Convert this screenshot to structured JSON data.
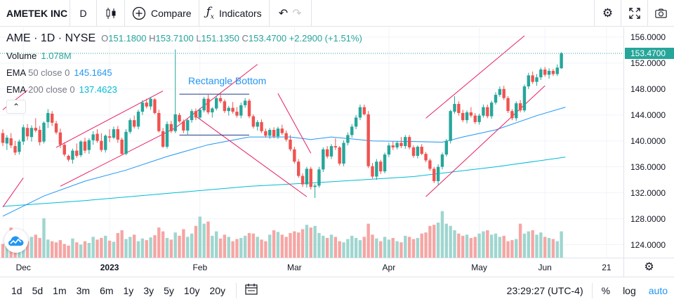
{
  "toolbar": {
    "symbol": "AMETEK INC",
    "interval": "D",
    "compare_label": "Compare",
    "indicators_label": "Indicators",
    "icons": [
      "candles-icon",
      "plus-circle-icon",
      "fx-icon",
      "undo-icon",
      "redo-icon",
      "gear-icon",
      "fullscreen-icon",
      "camera-icon"
    ]
  },
  "legend": {
    "ticker": "AME",
    "interval": "1D",
    "exchange": "NYSE",
    "open_key": "O",
    "open": "151.1800",
    "high_key": "H",
    "high": "153.7100",
    "low_key": "L",
    "low": "151.1350",
    "close_key": "C",
    "close": "153.4700",
    "change": "+2.2900 (+1.51%)",
    "volume_label": "Volume",
    "volume_value": "1.078M",
    "ema50_label": "EMA",
    "ema50_params": "50 close 0",
    "ema50_value": "145.1645",
    "ema200_label": "EMA",
    "ema200_params": "200 close 0",
    "ema200_value": "137.4623",
    "collapse_symbol": "⌃"
  },
  "drawing": {
    "rectangle_label": "Rectangle Bottom"
  },
  "price_scale": {
    "labels": [
      "156.0000",
      "152.0000",
      "148.0000",
      "144.0000",
      "140.0000",
      "136.0000",
      "132.0000",
      "128.0000",
      "124.0000"
    ],
    "last_price": "153.4700"
  },
  "time_axis": {
    "labels": [
      {
        "text": "Dec",
        "bold": false
      },
      {
        "text": "2023",
        "bold": true
      },
      {
        "text": "Feb",
        "bold": false
      },
      {
        "text": "Mar",
        "bold": false
      },
      {
        "text": "Apr",
        "bold": false
      },
      {
        "text": "May",
        "bold": false
      },
      {
        "text": "Jun",
        "bold": false
      },
      {
        "text": "21",
        "bold": false
      }
    ]
  },
  "bottombar": {
    "ranges": [
      "1d",
      "5d",
      "1m",
      "3m",
      "6m",
      "1y",
      "3y",
      "5y",
      "10y",
      "20y"
    ],
    "clock": "23:29:27 (UTC-4)",
    "percent_label": "%",
    "log_label": "log",
    "auto_label": "auto"
  },
  "colors": {
    "up": "#26a69a",
    "down": "#ef5350",
    "ema50": "#2196f3",
    "ema200": "#00bcd4",
    "channel": "#e91e63",
    "accent": "#2196f3"
  },
  "chart_data": {
    "type": "candlestick",
    "ylim": [
      122,
      157.5
    ],
    "candles": [
      [
        141.2,
        141.8,
        139.2,
        139.7
      ],
      [
        139.6,
        140.9,
        138.6,
        140.5
      ],
      [
        140.4,
        141.2,
        138.9,
        139.3
      ],
      [
        139.2,
        140.0,
        137.8,
        138.2
      ],
      [
        138.3,
        140.2,
        137.9,
        139.9
      ],
      [
        139.9,
        142.5,
        139.4,
        142.1
      ],
      [
        142.0,
        142.6,
        140.1,
        140.7
      ],
      [
        140.6,
        142.4,
        139.9,
        142.0
      ],
      [
        142.0,
        143.5,
        141.3,
        141.6
      ],
      [
        141.7,
        142.3,
        139.3,
        139.8
      ],
      [
        139.9,
        143.0,
        139.6,
        142.8
      ],
      [
        142.9,
        144.9,
        142.0,
        144.3
      ],
      [
        144.2,
        144.6,
        142.3,
        142.8
      ],
      [
        142.7,
        143.1,
        141.0,
        141.3
      ],
      [
        141.3,
        141.9,
        138.9,
        139.4
      ],
      [
        139.4,
        139.8,
        137.6,
        137.9
      ],
      [
        137.7,
        137.9,
        136.8,
        137.1
      ],
      [
        137.1,
        138.8,
        136.5,
        138.5
      ],
      [
        138.5,
        139.6,
        137.4,
        137.7
      ],
      [
        137.8,
        140.1,
        137.5,
        139.9
      ],
      [
        139.9,
        140.5,
        138.1,
        138.5
      ],
      [
        138.6,
        140.4,
        138.0,
        140.1
      ],
      [
        140.1,
        141.5,
        139.4,
        141.0
      ],
      [
        141.1,
        141.8,
        139.7,
        140.0
      ],
      [
        140.0,
        141.2,
        138.3,
        138.6
      ],
      [
        138.6,
        141.0,
        138.2,
        140.8
      ],
      [
        140.7,
        141.8,
        139.8,
        140.5
      ],
      [
        140.5,
        142.2,
        140.3,
        141.8
      ],
      [
        141.8,
        142.3,
        139.7,
        140.2
      ],
      [
        140.2,
        140.5,
        137.8,
        138.0
      ],
      [
        138.0,
        141.8,
        137.8,
        141.4
      ],
      [
        141.4,
        143.5,
        141.1,
        143.2
      ],
      [
        143.2,
        143.9,
        141.9,
        142.2
      ],
      [
        142.2,
        144.8,
        141.8,
        144.5
      ],
      [
        144.5,
        146.3,
        144.0,
        145.9
      ],
      [
        145.9,
        146.5,
        145.0,
        145.3
      ],
      [
        145.3,
        146.8,
        144.8,
        146.5
      ],
      [
        146.4,
        146.6,
        144.1,
        144.3
      ],
      [
        144.3,
        144.8,
        141.3,
        141.5
      ],
      [
        141.5,
        142.0,
        138.9,
        139.1
      ],
      [
        139.1,
        143.0,
        138.8,
        142.6
      ],
      [
        142.6,
        143.1,
        141.2,
        141.5
      ],
      [
        141.5,
        154.1,
        141.2,
        144.1
      ],
      [
        144.0,
        144.3,
        142.8,
        143.0
      ],
      [
        143.0,
        143.3,
        141.2,
        141.6
      ],
      [
        141.6,
        143.4,
        140.9,
        143.2
      ],
      [
        143.2,
        144.9,
        142.8,
        144.6
      ],
      [
        144.6,
        145.0,
        143.2,
        143.6
      ],
      [
        143.6,
        145.1,
        143.3,
        144.8
      ],
      [
        144.7,
        146.8,
        144.4,
        146.5
      ],
      [
        146.5,
        147.1,
        144.1,
        144.4
      ],
      [
        144.4,
        145.2,
        143.6,
        145.0
      ],
      [
        145.0,
        146.9,
        144.7,
        146.6
      ],
      [
        146.6,
        147.3,
        145.8,
        146.1
      ],
      [
        146.1,
        146.4,
        144.3,
        144.6
      ],
      [
        144.6,
        145.4,
        143.9,
        145.1
      ],
      [
        145.1,
        146.0,
        144.2,
        144.5
      ],
      [
        144.5,
        145.2,
        143.6,
        143.9
      ],
      [
        143.9,
        145.9,
        143.5,
        145.5
      ],
      [
        145.5,
        146.6,
        145.1,
        146.2
      ],
      [
        146.2,
        146.5,
        143.5,
        143.8
      ],
      [
        143.8,
        144.1,
        141.9,
        142.2
      ],
      [
        142.2,
        143.2,
        141.6,
        142.9
      ],
      [
        142.9,
        143.3,
        141.2,
        141.5
      ],
      [
        141.5,
        141.9,
        140.5,
        140.8
      ],
      [
        140.8,
        142.0,
        140.3,
        141.7
      ],
      [
        141.7,
        142.1,
        140.4,
        140.7
      ],
      [
        140.7,
        142.2,
        140.3,
        141.9
      ],
      [
        141.9,
        142.5,
        140.9,
        141.2
      ],
      [
        141.2,
        141.6,
        139.9,
        140.2
      ],
      [
        140.2,
        140.9,
        138.4,
        138.7
      ],
      [
        138.7,
        139.1,
        136.5,
        136.8
      ],
      [
        136.8,
        137.2,
        134.3,
        134.6
      ],
      [
        134.6,
        135.0,
        132.9,
        133.3
      ],
      [
        133.3,
        136.0,
        132.8,
        135.7
      ],
      [
        135.7,
        136.0,
        132.5,
        132.9
      ],
      [
        132.9,
        133.4,
        131.2,
        133.1
      ],
      [
        133.1,
        136.0,
        132.8,
        135.6
      ],
      [
        135.6,
        139.0,
        135.2,
        138.7
      ],
      [
        138.7,
        139.2,
        137.3,
        137.6
      ],
      [
        137.6,
        139.5,
        137.2,
        139.2
      ],
      [
        139.2,
        140.4,
        138.6,
        139.0
      ],
      [
        139.0,
        139.2,
        136.2,
        136.5
      ],
      [
        136.5,
        140.1,
        136.1,
        139.7
      ],
      [
        139.7,
        141.3,
        139.3,
        140.9
      ],
      [
        140.9,
        142.6,
        140.5,
        142.2
      ],
      [
        142.2,
        144.0,
        141.8,
        143.6
      ],
      [
        143.6,
        145.6,
        143.2,
        145.2
      ],
      [
        145.2,
        145.6,
        143.9,
        144.1
      ],
      [
        144.1,
        144.6,
        135.8,
        136.1
      ],
      [
        136.1,
        136.6,
        134.2,
        134.5
      ],
      [
        134.5,
        137.2,
        134.0,
        136.8
      ],
      [
        136.8,
        137.1,
        134.9,
        135.3
      ],
      [
        135.3,
        138.2,
        135.0,
        137.9
      ],
      [
        137.9,
        139.7,
        137.5,
        139.3
      ],
      [
        139.3,
        139.9,
        138.6,
        139.0
      ],
      [
        139.0,
        140.0,
        138.7,
        139.7
      ],
      [
        139.7,
        140.6,
        138.9,
        139.2
      ],
      [
        139.2,
        140.9,
        138.8,
        140.6
      ],
      [
        140.6,
        140.9,
        138.7,
        139.0
      ],
      [
        139.0,
        139.3,
        137.4,
        137.7
      ],
      [
        137.7,
        139.3,
        137.3,
        139.1
      ],
      [
        139.1,
        139.5,
        137.8,
        138.0
      ],
      [
        138.0,
        138.3,
        136.7,
        137.0
      ],
      [
        137.0,
        137.3,
        135.4,
        135.7
      ],
      [
        135.7,
        136.0,
        133.5,
        133.8
      ],
      [
        133.8,
        136.4,
        133.1,
        136.0
      ],
      [
        136.0,
        138.2,
        135.6,
        137.9
      ],
      [
        137.9,
        140.3,
        137.6,
        140.0
      ],
      [
        140.0,
        144.8,
        139.6,
        144.6
      ],
      [
        144.5,
        146.9,
        144.2,
        145.7
      ],
      [
        145.7,
        146.1,
        143.9,
        144.3
      ],
      [
        144.3,
        144.8,
        142.9,
        143.2
      ],
      [
        143.2,
        144.7,
        142.7,
        144.4
      ],
      [
        144.4,
        145.2,
        143.6,
        143.9
      ],
      [
        143.9,
        144.3,
        142.6,
        142.9
      ],
      [
        142.9,
        144.2,
        142.5,
        143.9
      ],
      [
        143.9,
        145.6,
        143.6,
        145.2
      ],
      [
        145.2,
        145.6,
        143.5,
        143.8
      ],
      [
        143.8,
        146.2,
        143.4,
        145.9
      ],
      [
        145.9,
        147.5,
        145.6,
        147.1
      ],
      [
        147.1,
        148.4,
        146.8,
        148.0
      ],
      [
        148.0,
        148.5,
        146.3,
        146.6
      ],
      [
        146.6,
        146.9,
        144.3,
        144.6
      ],
      [
        144.6,
        144.9,
        143.2,
        143.5
      ],
      [
        143.5,
        146.1,
        143.1,
        145.8
      ],
      [
        145.8,
        146.3,
        144.4,
        144.7
      ],
      [
        144.7,
        148.7,
        144.4,
        148.4
      ],
      [
        148.4,
        150.5,
        148.0,
        150.1
      ],
      [
        150.1,
        150.7,
        148.8,
        149.1
      ],
      [
        149.1,
        150.3,
        148.5,
        149.8
      ],
      [
        149.8,
        151.3,
        149.4,
        151.0
      ],
      [
        151.0,
        151.4,
        149.9,
        150.2
      ],
      [
        150.2,
        151.2,
        149.6,
        150.8
      ],
      [
        150.8,
        151.1,
        150.0,
        150.3
      ],
      [
        150.3,
        151.8,
        150.0,
        151.3
      ],
      [
        151.2,
        153.7,
        151.1,
        153.5
      ]
    ],
    "volume_relative": [
      0.25,
      0.4,
      0.55,
      0.35,
      0.28,
      0.45,
      0.3,
      0.38,
      0.42,
      0.36,
      0.72,
      0.33,
      0.3,
      0.28,
      0.32,
      0.25,
      0.22,
      0.35,
      0.28,
      0.24,
      0.3,
      0.27,
      0.38,
      0.33,
      0.36,
      0.4,
      0.31,
      0.29,
      0.45,
      0.5,
      0.34,
      0.38,
      0.42,
      0.3,
      0.35,
      0.32,
      0.37,
      0.41,
      0.55,
      0.48,
      0.36,
      0.33,
      0.46,
      0.4,
      0.52,
      0.38,
      0.44,
      0.58,
      0.75,
      0.62,
      0.66,
      0.4,
      0.48,
      0.35,
      0.42,
      0.38,
      0.3,
      0.34,
      0.36,
      0.4,
      0.45,
      0.44,
      0.38,
      0.33,
      0.3,
      0.42,
      0.5,
      0.47,
      0.42,
      0.38,
      0.45,
      0.48,
      0.46,
      0.52,
      0.6,
      0.55,
      0.58,
      0.45,
      0.4,
      0.36,
      0.42,
      0.38,
      0.3,
      0.28,
      0.34,
      0.4,
      0.36,
      0.32,
      0.38,
      0.62,
      0.42,
      0.35,
      0.3,
      0.38,
      0.33,
      0.36,
      0.3,
      0.28,
      0.4,
      0.38,
      0.34,
      0.36,
      0.44,
      0.46,
      0.58,
      0.6,
      0.64,
      0.85,
      0.62,
      0.58,
      0.5,
      0.44,
      0.4,
      0.42,
      0.36,
      0.38,
      0.44,
      0.48,
      0.5,
      0.42,
      0.44,
      0.38,
      0.4,
      0.3,
      0.32,
      0.34,
      0.62,
      0.44,
      0.48,
      0.5,
      0.42,
      0.46,
      0.38,
      0.36,
      0.34,
      0.3,
      0.48
    ],
    "ema50": [
      [
        0,
        128.4
      ],
      [
        10,
        131.5
      ],
      [
        20,
        133.8
      ],
      [
        30,
        135.5
      ],
      [
        40,
        137.6
      ],
      [
        50,
        139.4
      ],
      [
        60,
        140.6
      ],
      [
        70,
        140.6
      ],
      [
        75,
        140.2
      ],
      [
        80,
        140.6
      ],
      [
        90,
        140.0
      ],
      [
        100,
        139.9
      ],
      [
        107,
        139.8
      ],
      [
        112,
        140.6
      ],
      [
        120,
        141.7
      ],
      [
        130,
        143.9
      ],
      [
        137,
        145.2
      ]
    ],
    "ema200": [
      [
        0,
        129.9
      ],
      [
        20,
        130.8
      ],
      [
        40,
        131.9
      ],
      [
        60,
        133.0
      ],
      [
        80,
        133.7
      ],
      [
        100,
        134.5
      ],
      [
        120,
        136.0
      ],
      [
        137,
        137.5
      ]
    ],
    "channels": [
      [
        [
          0,
          129.8
        ],
        [
          5,
          134.3
        ]
      ],
      [
        [
          0,
          144.8
        ],
        [
          6,
          147.8
        ]
      ],
      [
        [
          13,
          139.0
        ],
        [
          39,
          147.7
        ]
      ],
      [
        [
          14,
          133.0
        ],
        [
          42,
          142.0
        ]
      ],
      [
        [
          42,
          142.0
        ],
        [
          62,
          151.8
        ]
      ],
      [
        [
          47,
          143.8
        ],
        [
          74,
          131.4
        ]
      ],
      [
        [
          67,
          147.3
        ],
        [
          75,
          138.1
        ]
      ],
      [
        [
          103,
          143.5
        ],
        [
          127,
          156.2
        ]
      ],
      [
        [
          103,
          131.4
        ],
        [
          132,
          148.5
        ]
      ]
    ],
    "rectangle": {
      "x1": 43,
      "x2": 60,
      "top": 147.2,
      "bottom": 140.9
    }
  }
}
